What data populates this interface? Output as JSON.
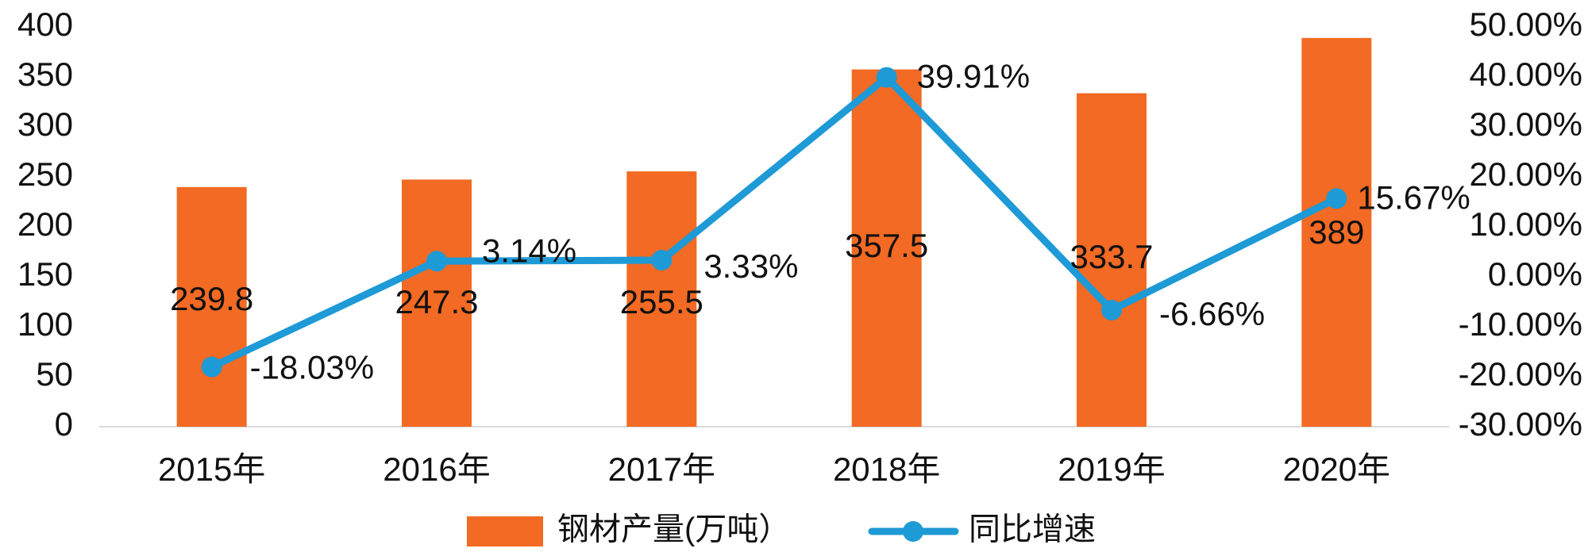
{
  "chart_data": {
    "type": "bar+line",
    "categories": [
      "2015年",
      "2016年",
      "2017年",
      "2018年",
      "2019年",
      "2020年"
    ],
    "series": [
      {
        "name": "钢材产量(万吨）",
        "type": "bar",
        "axis": "left",
        "values": [
          239.8,
          247.3,
          255.5,
          357.5,
          333.7,
          389
        ],
        "labels": [
          "239.8",
          "247.3",
          "255.5",
          "357.5",
          "333.7",
          "389"
        ],
        "color": "#F26A23"
      },
      {
        "name": "同比增速",
        "type": "line",
        "axis": "right",
        "values": [
          -18.03,
          3.14,
          3.33,
          39.91,
          -6.66,
          15.67
        ],
        "labels": [
          "-18.03%",
          "3.14%",
          "3.33%",
          "39.91%",
          "-6.66%",
          "15.67%"
        ],
        "color": "#1E9AD6"
      }
    ],
    "y_left": {
      "min": 0,
      "max": 400,
      "ticks": [
        "0",
        "50",
        "100",
        "150",
        "200",
        "250",
        "300",
        "350",
        "400"
      ]
    },
    "y_right": {
      "min": -30,
      "max": 50,
      "ticks": [
        "-30.00%",
        "-20.00%",
        "-10.00%",
        "0.00%",
        "10.00%",
        "20.00%",
        "30.00%",
        "40.00%",
        "50.00%"
      ]
    },
    "grid": false,
    "legend_position": "bottom"
  }
}
